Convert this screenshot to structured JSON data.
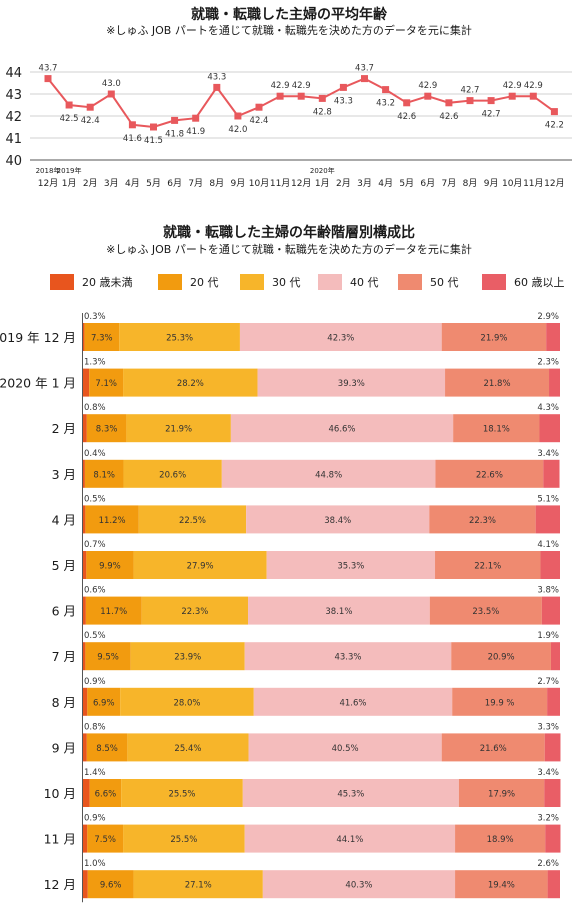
{
  "chart_data": [
    {
      "type": "line",
      "title": "就職・転職した主婦の平均年齢",
      "subtitle": "※しゅふ JOB パートを通じて就職・転職先を決めた方のデータを元に集計",
      "year_labels": [
        "2018年",
        "2019年",
        "2020年"
      ],
      "categories": [
        "12月",
        "1月",
        "2月",
        "3月",
        "4月",
        "5月",
        "6月",
        "7月",
        "8月",
        "9月",
        "10月",
        "11月",
        "12月",
        "1月",
        "2月",
        "3月",
        "4月",
        "5月",
        "6月",
        "7月",
        "8月",
        "9月",
        "10月",
        "11月",
        "12月"
      ],
      "values": [
        43.7,
        42.5,
        42.4,
        43.0,
        41.6,
        41.5,
        41.8,
        41.9,
        43.3,
        42.0,
        42.4,
        42.9,
        42.9,
        42.8,
        43.3,
        43.7,
        43.2,
        42.6,
        42.9,
        42.6,
        42.7,
        42.7,
        42.9,
        42.9,
        42.2
      ],
      "ylim": [
        40,
        44
      ],
      "yticks": [
        "40",
        "41",
        "42",
        "43",
        "44"
      ],
      "grid": true,
      "color": "#e8585c"
    },
    {
      "type": "bar",
      "orientation": "horizontal",
      "stacked": true,
      "title": "就職・転職した主婦の年齢階層別構成比",
      "subtitle": "※しゅふ JOB パートを通じて就職・転職先を決めた方のデータを元に集計",
      "legend_position": "top",
      "categories": [
        "2019 年 12 月",
        "2020 年 1 月",
        "2 月",
        "3 月",
        "4 月",
        "5 月",
        "6 月",
        "7 月",
        "8 月",
        "9 月",
        "10 月",
        "11 月",
        "12 月"
      ],
      "series": [
        {
          "name": "20 歳未満",
          "color": "#e8551e",
          "values": [
            0.3,
            1.3,
            0.8,
            0.4,
            0.5,
            0.7,
            0.6,
            0.5,
            0.9,
            0.8,
            1.4,
            0.9,
            1.0
          ],
          "labels": [
            "0.3%",
            "1.3%",
            "0.8%",
            "0.4%",
            "0.5%",
            "0.7%",
            "0.6%",
            "0.5%",
            "0.9%",
            "0.8%",
            "1.4%",
            "0.9%",
            "1.0%"
          ]
        },
        {
          "name": "20 代",
          "color": "#f29b0f",
          "values": [
            7.3,
            7.1,
            8.3,
            8.1,
            11.2,
            9.9,
            11.7,
            9.5,
            6.9,
            8.5,
            6.6,
            7.5,
            9.6
          ],
          "labels": [
            "7.3%",
            "7.1%",
            "8.3%",
            "8.1%",
            "11.2%",
            "9.9%",
            "11.7%",
            "9.5%",
            "6.9%",
            "8.5%",
            "6.6%",
            "7.5%",
            "9.6%"
          ]
        },
        {
          "name": "30 代",
          "color": "#f7b52a",
          "values": [
            25.3,
            28.2,
            21.9,
            20.6,
            22.5,
            27.9,
            22.3,
            23.9,
            28.0,
            25.4,
            25.5,
            25.5,
            27.1
          ],
          "labels": [
            "25.3%",
            "28.2%",
            "21.9%",
            "20.6%",
            "22.5%",
            "27.9%",
            "22.3%",
            "23.9%",
            "28.0%",
            "25.4%",
            "25.5%",
            "25.5%",
            "27.1%"
          ]
        },
        {
          "name": "40 代",
          "color": "#f4bcbc",
          "values": [
            42.3,
            39.3,
            46.6,
            44.8,
            38.4,
            35.3,
            38.1,
            43.3,
            41.6,
            40.5,
            45.3,
            44.1,
            40.3
          ],
          "labels": [
            "42.3%",
            "39.3%",
            "46.6%",
            "44.8%",
            "38.4%",
            "35.3%",
            "38.1%",
            "43.3%",
            "41.6%",
            "40.5%",
            "45.3%",
            "44.1%",
            "40.3%"
          ]
        },
        {
          "name": "50 代",
          "color": "#ef8a70",
          "values": [
            21.9,
            21.8,
            18.1,
            22.6,
            22.3,
            22.1,
            23.5,
            20.9,
            19.9,
            21.6,
            17.9,
            18.9,
            19.4
          ],
          "labels": [
            "21.9%",
            "21.8%",
            "18.1%",
            "22.6%",
            "22.3%",
            "22.1%",
            "23.5%",
            "20.9%",
            "19.9 %",
            "21.6%",
            "17.9%",
            "18.9%",
            "19.4%"
          ]
        },
        {
          "name": "60 歳以上",
          "color": "#e95e66",
          "values": [
            2.9,
            2.3,
            4.3,
            3.4,
            5.1,
            4.1,
            3.8,
            1.9,
            2.7,
            3.3,
            3.4,
            3.2,
            2.6
          ],
          "labels": [
            "2.9%",
            "2.3%",
            "4.3%",
            "3.4%",
            "5.1%",
            "4.1%",
            "3.8%",
            "1.9%",
            "2.7%",
            "3.3%",
            "3.4%",
            "3.2%",
            "2.6%"
          ]
        }
      ]
    }
  ]
}
